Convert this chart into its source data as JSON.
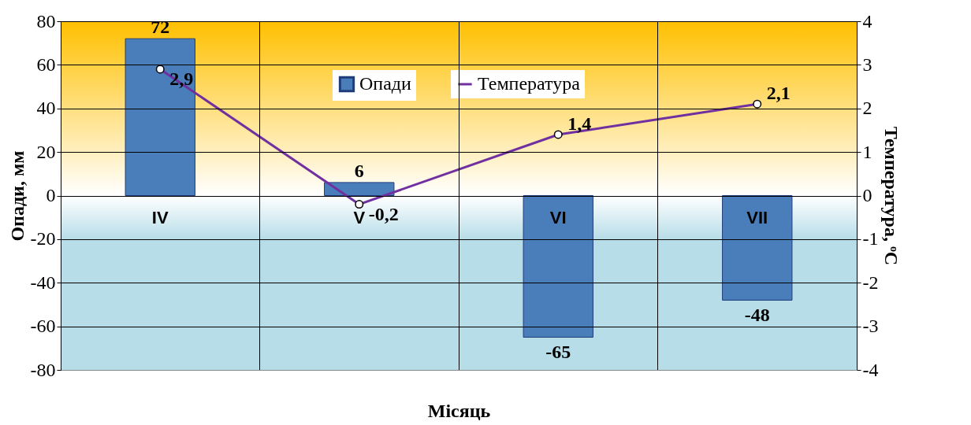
{
  "chart_data": {
    "type": "bar",
    "xlabel": "Місяць",
    "ylabel": "Опади, мм",
    "y2label": "Температура, ᵒC",
    "categories": [
      "IV",
      "V",
      "VI",
      "VII"
    ],
    "series": [
      {
        "name": "Опади",
        "color": "#4a7ebb",
        "values": [
          72,
          6,
          -65,
          -48
        ],
        "value_labels": [
          "72",
          "6",
          "-65",
          "-48"
        ]
      },
      {
        "name": "Температура",
        "type": "line",
        "axis": "y2",
        "color": "#7030a0",
        "values": [
          2.9,
          -0.2,
          1.4,
          2.1
        ],
        "value_labels": [
          "2,9",
          "-0,2",
          "1,4",
          "2,1"
        ],
        "marker": "circle"
      }
    ],
    "ylim": [
      -80,
      80
    ],
    "yticks": [
      -80,
      -60,
      -40,
      -20,
      0,
      20,
      40,
      60,
      80
    ],
    "y2lim": [
      -4,
      4
    ],
    "y2ticks": [
      -4,
      -3,
      -2,
      -1,
      0,
      1,
      2,
      3,
      4
    ],
    "bands": [
      {
        "axis": "y",
        "from": 0,
        "to": 80,
        "color": "#ffc000"
      },
      {
        "axis": "y",
        "from": -80,
        "to": 0,
        "color": "#b7dde8"
      }
    ],
    "grid": true,
    "legend": "top"
  }
}
